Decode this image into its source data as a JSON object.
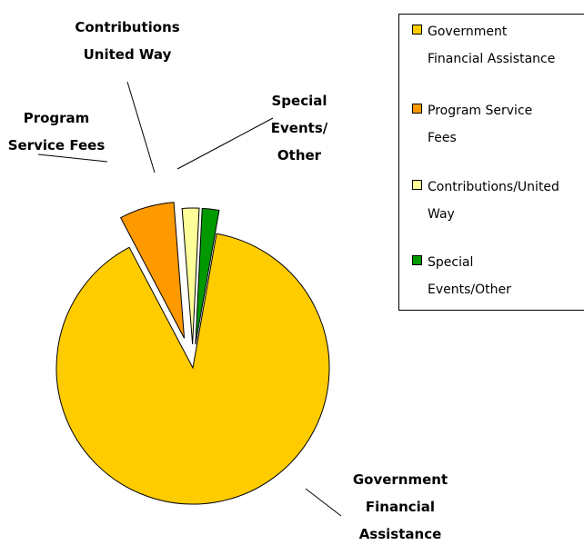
{
  "chart_data": {
    "type": "pie",
    "categories": [
      "Government Financial Assistance",
      "Program Service Fees",
      "Contributions/United Way",
      "Special Events/Other"
    ],
    "values": [
      89.5,
      6.5,
      2.0,
      2.0
    ],
    "colors": [
      "#FFCC00",
      "#FF9900",
      "#FFFF99",
      "#009900"
    ],
    "exploded": true,
    "callouts": [
      {
        "lines": [
          "Government",
          "Financial",
          "Assistance"
        ]
      },
      {
        "lines": [
          "Program",
          "Service Fees"
        ]
      },
      {
        "lines": [
          "Contributions",
          "United Way"
        ]
      },
      {
        "lines": [
          "Special",
          "Events/",
          "Other"
        ]
      }
    ],
    "legend": {
      "placement": "right",
      "entries": [
        {
          "label": "Government\nFinancial Assistance",
          "color": "#FFCC00"
        },
        {
          "label": "Program Service\nFees",
          "color": "#FF9900"
        },
        {
          "label": "Contributions/United\nWay",
          "color": "#FFFF99"
        },
        {
          "label": "Special\nEvents/Other",
          "color": "#009900"
        }
      ]
    }
  }
}
